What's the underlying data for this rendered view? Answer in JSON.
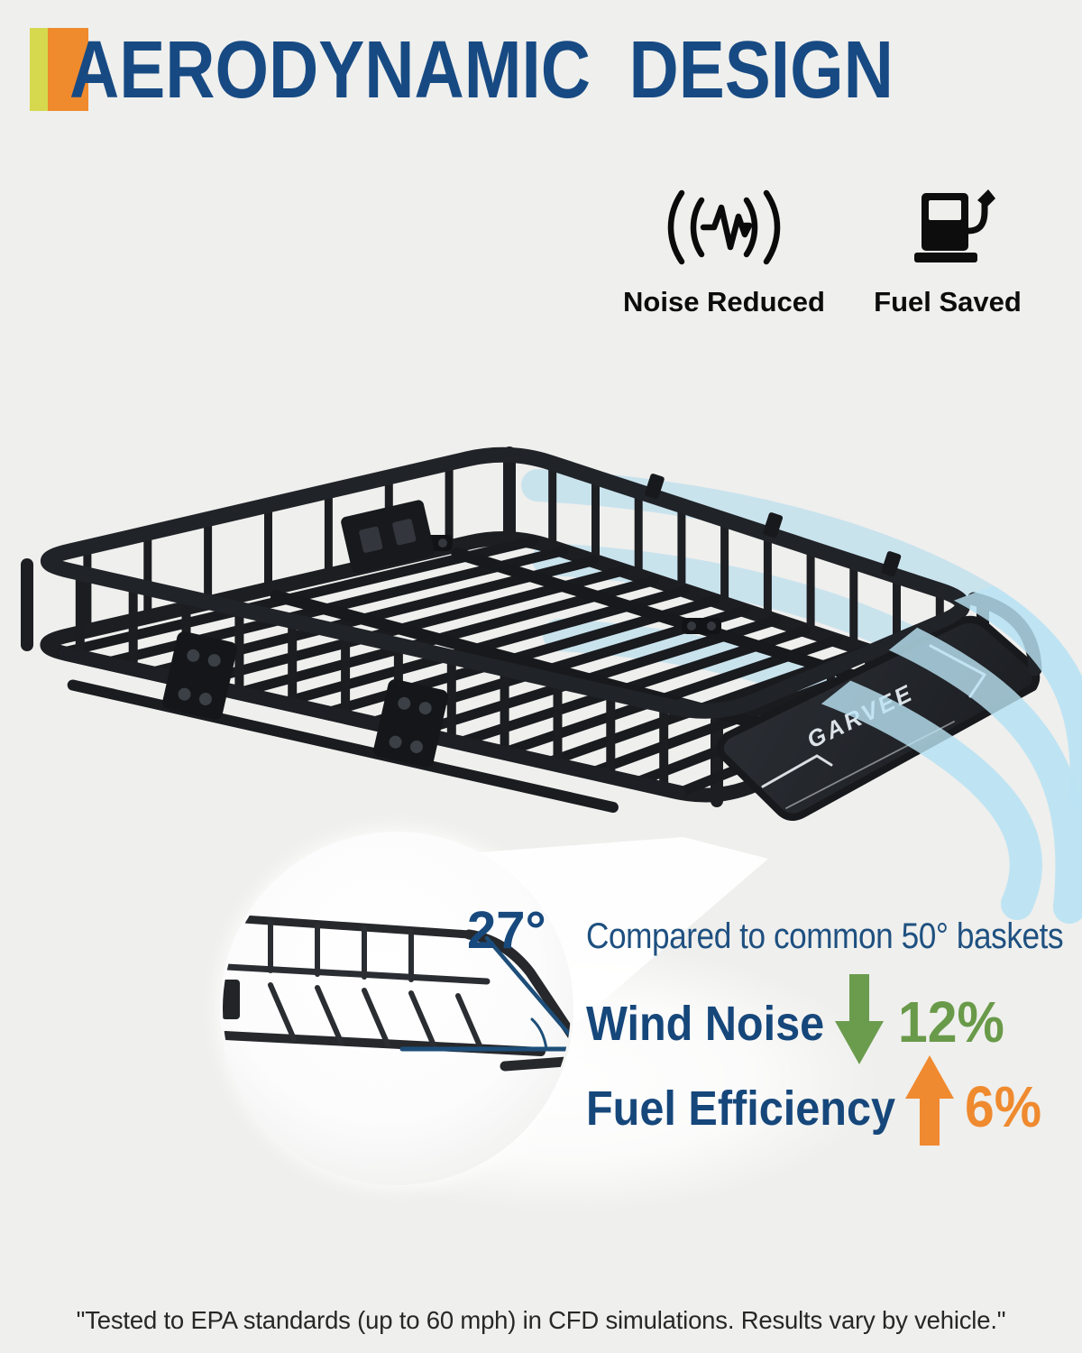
{
  "header": {
    "title": "AERODYNAMIC  DESIGN",
    "accent_green": "#d6d94d",
    "accent_orange": "#ef8a2d",
    "title_color": "#174a83"
  },
  "benefits": [
    {
      "icon": "noise-waves-icon",
      "label": "Noise Reduced"
    },
    {
      "icon": "fuel-pump-icon",
      "label": "Fuel Saved"
    }
  ],
  "product": {
    "brand": "GARVEE",
    "angle_label": "27°",
    "airflow_color": "#b7e1f2"
  },
  "comparison": {
    "intro": "Compared to common 50° baskets",
    "metrics": [
      {
        "label": "Wind Noise",
        "direction": "down",
        "value": "12%",
        "color": "#699a49"
      },
      {
        "label": "Fuel Efficiency",
        "direction": "up",
        "value": "6%",
        "color": "#ef8a2f"
      }
    ]
  },
  "footnote": "\"Tested to EPA standards (up to 60 mph) in CFD simulations. Results vary by vehicle.\""
}
